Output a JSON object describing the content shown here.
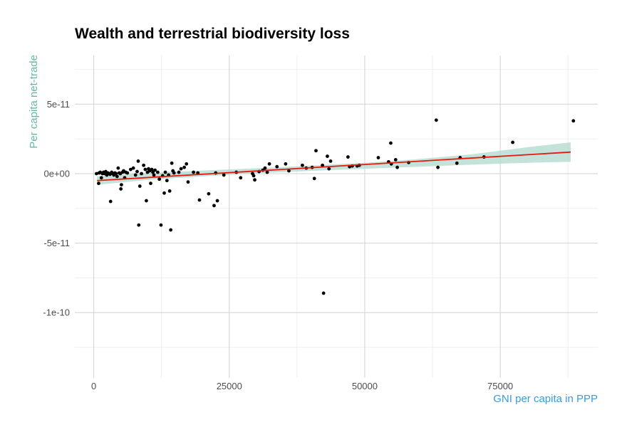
{
  "chart_data": {
    "type": "scatter",
    "title": "Wealth and terrestrial biodiversity loss",
    "xlabel": "GNI per capita in PPP",
    "ylabel": "Per capita net-trade",
    "xlim": [
      -3500,
      93000
    ],
    "ylim": [
      -1.47e-10,
      8.5e-11
    ],
    "x_ticks": [
      0,
      25000,
      50000,
      75000
    ],
    "x_tick_labels": [
      "0",
      "25000",
      "50000",
      "75000"
    ],
    "y_ticks": [
      5e-11,
      0,
      -5e-11,
      -1e-10
    ],
    "y_tick_labels": [
      "5e-11",
      "0e+00",
      "-5e-11",
      "-1e-10"
    ],
    "grid": true,
    "colors": {
      "points": "#000000",
      "fit_line": "#e8180c",
      "confidence_band": "#afd8cc",
      "xlabel": "#3a9bd9",
      "ylabel": "#66b8a6",
      "grid": "#d2d2d2"
    },
    "fit": {
      "x": [
        600,
        88000
      ],
      "y": [
        -5e-12,
        1.55e-11
      ]
    },
    "band": {
      "x": [
        600,
        10000,
        20000,
        30000,
        40000,
        50000,
        60000,
        70000,
        80000,
        88000
      ],
      "lower": [
        -8e-12,
        -4.5e-12,
        -2e-12,
        3e-13,
        2e-12,
        3.5e-12,
        5e-12,
        6.5e-12,
        7.8e-12,
        8.5e-12
      ],
      "upper": [
        -2e-12,
        5e-13,
        2.2e-12,
        3.8e-12,
        5.8e-12,
        7.8e-12,
        1.05e-11,
        1.4e-11,
        1.9e-11,
        2.25e-11
      ]
    },
    "points": [
      [
        500,
        0.0
      ],
      [
        900,
        -7e-12
      ],
      [
        1000,
        5e-13
      ],
      [
        1200,
        1e-12
      ],
      [
        1400,
        -3e-12
      ],
      [
        1600,
        0.0
      ],
      [
        1800,
        1e-12
      ],
      [
        2000,
        0.0
      ],
      [
        2200,
        1.5e-12
      ],
      [
        2400,
        -1e-12
      ],
      [
        2600,
        5e-13
      ],
      [
        2800,
        0.0
      ],
      [
        3000,
        -5e-13
      ],
      [
        3100,
        -2e-11
      ],
      [
        3300,
        1e-12
      ],
      [
        3500,
        0.0
      ],
      [
        3700,
        -1e-12
      ],
      [
        3900,
        5e-13
      ],
      [
        4100,
        0.0
      ],
      [
        4300,
        -2e-12
      ],
      [
        4500,
        4e-12
      ],
      [
        4700,
        5e-13
      ],
      [
        4900,
        0.0
      ],
      [
        5000,
        -1.1e-11
      ],
      [
        5100,
        -8e-12
      ],
      [
        5300,
        1e-12
      ],
      [
        5500,
        2e-12
      ],
      [
        5700,
        -3e-12
      ],
      [
        5900,
        1e-12
      ],
      [
        6200,
        5e-13
      ],
      [
        6800,
        3e-12
      ],
      [
        7300,
        4e-12
      ],
      [
        7700,
        -1e-12
      ],
      [
        8000,
        1.5e-12
      ],
      [
        8200,
        9e-12
      ],
      [
        8300,
        -3.7e-11
      ],
      [
        8500,
        -9e-12
      ],
      [
        8800,
        0.0
      ],
      [
        9200,
        6e-12
      ],
      [
        9500,
        3e-12
      ],
      [
        9700,
        -1.95e-11
      ],
      [
        9900,
        1e-12
      ],
      [
        10100,
        3.5e-12
      ],
      [
        10300,
        2e-12
      ],
      [
        10500,
        -7e-12
      ],
      [
        10700,
        3e-12
      ],
      [
        10900,
        1e-12
      ],
      [
        11100,
        -1e-12
      ],
      [
        11300,
        2.5e-12
      ],
      [
        11800,
        1e-12
      ],
      [
        12100,
        -4e-12
      ],
      [
        12400,
        -3.7e-11
      ],
      [
        12700,
        -1.5e-12
      ],
      [
        13000,
        -1.4e-11
      ],
      [
        13200,
        1e-12
      ],
      [
        13500,
        -5e-12
      ],
      [
        13800,
        -1e-12
      ],
      [
        14000,
        -1.25e-11
      ],
      [
        14200,
        -4.05e-11
      ],
      [
        14400,
        7.5e-12
      ],
      [
        14600,
        2e-12
      ],
      [
        14800,
        5e-13
      ],
      [
        15700,
        1e-12
      ],
      [
        16100,
        3.5e-12
      ],
      [
        16700,
        4.5e-12
      ],
      [
        17100,
        7e-12
      ],
      [
        17400,
        -6e-12
      ],
      [
        18400,
        1e-12
      ],
      [
        19200,
        5e-13
      ],
      [
        19500,
        -1.9e-11
      ],
      [
        21200,
        -1.45e-11
      ],
      [
        22200,
        -2.3e-11
      ],
      [
        22500,
        5e-13
      ],
      [
        22800,
        -1.95e-11
      ],
      [
        24000,
        -1e-12
      ],
      [
        26300,
        1e-12
      ],
      [
        27100,
        -3e-12
      ],
      [
        29300,
        0.0
      ],
      [
        29500,
        -1.5e-12
      ],
      [
        29700,
        -4.5e-12
      ],
      [
        30500,
        1.5e-12
      ],
      [
        31200,
        2.5e-12
      ],
      [
        31600,
        4e-12
      ],
      [
        32000,
        1e-12
      ],
      [
        32400,
        7e-12
      ],
      [
        33800,
        5e-12
      ],
      [
        35400,
        7e-12
      ],
      [
        36000,
        2e-12
      ],
      [
        38500,
        6e-12
      ],
      [
        39200,
        4e-12
      ],
      [
        40300,
        4.5e-12
      ],
      [
        40700,
        -3.5e-12
      ],
      [
        41000,
        1.65e-11
      ],
      [
        42200,
        6e-12
      ],
      [
        42400,
        -8.6e-11
      ],
      [
        43100,
        1.25e-11
      ],
      [
        43400,
        3.5e-12
      ],
      [
        43700,
        9e-12
      ],
      [
        46900,
        1.2e-11
      ],
      [
        47200,
        5e-12
      ],
      [
        47700,
        5.5e-12
      ],
      [
        48600,
        5.5e-12
      ],
      [
        49000,
        6e-12
      ],
      [
        52500,
        1.15e-11
      ],
      [
        54400,
        8.5e-12
      ],
      [
        54800,
        2.2e-11
      ],
      [
        54900,
        7e-12
      ],
      [
        55700,
        1e-11
      ],
      [
        56000,
        4.5e-12
      ],
      [
        58100,
        8e-12
      ],
      [
        63200,
        3.85e-11
      ],
      [
        63500,
        4.5e-12
      ],
      [
        67000,
        7.5e-12
      ],
      [
        67600,
        1.15e-11
      ],
      [
        72000,
        1.2e-11
      ],
      [
        77300,
        2.25e-11
      ],
      [
        88500,
        3.8e-11
      ]
    ]
  }
}
